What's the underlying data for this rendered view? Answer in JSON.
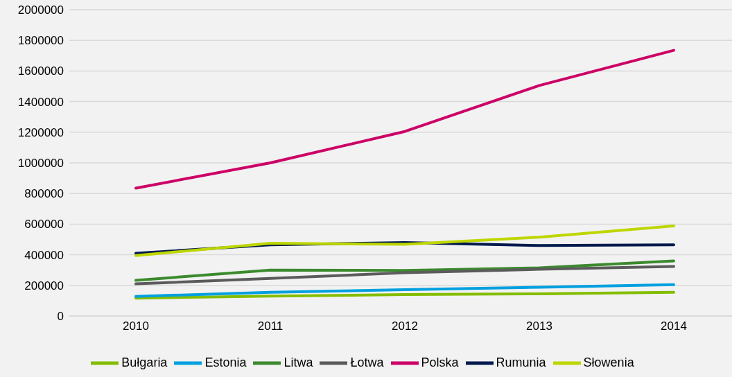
{
  "chart_data": {
    "type": "line",
    "categories": [
      "2010",
      "2011",
      "2012",
      "2013",
      "2014"
    ],
    "series": [
      {
        "name": "Bułgaria",
        "color": "#84bd00",
        "values": [
          117000,
          130000,
          140000,
          145000,
          155000
        ]
      },
      {
        "name": "Estonia",
        "color": "#00a0df",
        "values": [
          128000,
          155000,
          172000,
          188000,
          205000
        ]
      },
      {
        "name": "Litwa",
        "color": "#3c8a2e",
        "values": [
          233000,
          300000,
          298000,
          315000,
          360000
        ]
      },
      {
        "name": "Łotwa",
        "color": "#5b5b5b",
        "values": [
          210000,
          245000,
          283000,
          305000,
          324000
        ]
      },
      {
        "name": "Polska",
        "color": "#cc0066",
        "values": [
          835000,
          1000000,
          1205000,
          1505000,
          1735000
        ]
      },
      {
        "name": "Rumunia",
        "color": "#001a4d",
        "values": [
          410000,
          465000,
          480000,
          460000,
          465000
        ]
      },
      {
        "name": "Słowenia",
        "color": "#bed600",
        "values": [
          395000,
          475000,
          468000,
          515000,
          588000
        ]
      }
    ],
    "ylim": [
      0,
      2000000
    ],
    "yticks": [
      0,
      200000,
      400000,
      600000,
      800000,
      1000000,
      1200000,
      1400000,
      1600000,
      1800000,
      2000000
    ],
    "grid": "y",
    "legend": "bottom",
    "marker": "none",
    "line_style": "solid"
  }
}
